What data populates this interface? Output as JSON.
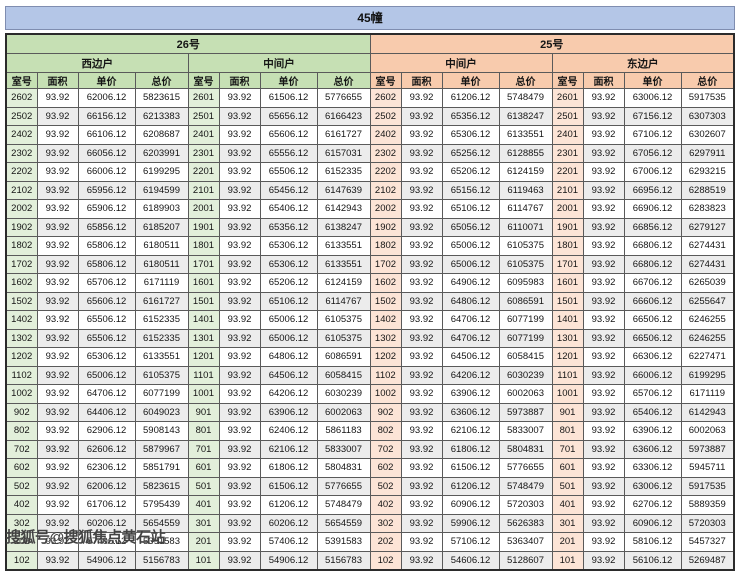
{
  "title": "45幢",
  "watermark": "搜狐号@搜狐焦点黄石站",
  "colors": {
    "title_bar": "#b4c6e7",
    "building_26_header": "#c6e0b4",
    "building_26_room_tint": "#e2efda",
    "building_25_header": "#f8cbad",
    "building_25_room_tint": "#fce4d6",
    "row_stripe": "#ececec",
    "border": "#5a5a5a"
  },
  "table": {
    "column_headers": [
      "室号",
      "面积",
      "单价",
      "总价"
    ],
    "sections": [
      {
        "building": "26号",
        "theme": "green",
        "units": [
          {
            "name": "西边户",
            "rows": [
              [
                "2602",
                "93.92",
                "62006.12",
                "5823615"
              ],
              [
                "2502",
                "93.92",
                "66156.12",
                "6213383"
              ],
              [
                "2402",
                "93.92",
                "66106.12",
                "6208687"
              ],
              [
                "2302",
                "93.92",
                "66056.12",
                "6203991"
              ],
              [
                "2202",
                "93.92",
                "66006.12",
                "6199295"
              ],
              [
                "2102",
                "93.92",
                "65956.12",
                "6194599"
              ],
              [
                "2002",
                "93.92",
                "65906.12",
                "6189903"
              ],
              [
                "1902",
                "93.92",
                "65856.12",
                "6185207"
              ],
              [
                "1802",
                "93.92",
                "65806.12",
                "6180511"
              ],
              [
                "1702",
                "93.92",
                "65806.12",
                "6180511"
              ],
              [
                "1602",
                "93.92",
                "65706.12",
                "6171119"
              ],
              [
                "1502",
                "93.92",
                "65606.12",
                "6161727"
              ],
              [
                "1402",
                "93.92",
                "65506.12",
                "6152335"
              ],
              [
                "1302",
                "93.92",
                "65506.12",
                "6152335"
              ],
              [
                "1202",
                "93.92",
                "65306.12",
                "6133551"
              ],
              [
                "1102",
                "93.92",
                "65006.12",
                "6105375"
              ],
              [
                "1002",
                "93.92",
                "64706.12",
                "6077199"
              ],
              [
                "902",
                "93.92",
                "64406.12",
                "6049023"
              ],
              [
                "802",
                "93.92",
                "62906.12",
                "5908143"
              ],
              [
                "702",
                "93.92",
                "62606.12",
                "5879967"
              ],
              [
                "602",
                "93.92",
                "62306.12",
                "5851791"
              ],
              [
                "502",
                "93.92",
                "62006.12",
                "5823615"
              ],
              [
                "402",
                "93.92",
                "61706.12",
                "5795439"
              ],
              [
                "302",
                "93.92",
                "60206.12",
                "5654559"
              ],
              [
                "202",
                "93.92",
                "57406.12",
                "5391583"
              ],
              [
                "102",
                "93.92",
                "54906.12",
                "5156783"
              ]
            ]
          },
          {
            "name": "中间户",
            "rows": [
              [
                "2601",
                "93.92",
                "61506.12",
                "5776655"
              ],
              [
                "2501",
                "93.92",
                "65656.12",
                "6166423"
              ],
              [
                "2401",
                "93.92",
                "65606.12",
                "6161727"
              ],
              [
                "2301",
                "93.92",
                "65556.12",
                "6157031"
              ],
              [
                "2201",
                "93.92",
                "65506.12",
                "6152335"
              ],
              [
                "2101",
                "93.92",
                "65456.12",
                "6147639"
              ],
              [
                "2001",
                "93.92",
                "65406.12",
                "6142943"
              ],
              [
                "1901",
                "93.92",
                "65356.12",
                "6138247"
              ],
              [
                "1801",
                "93.92",
                "65306.12",
                "6133551"
              ],
              [
                "1701",
                "93.92",
                "65306.12",
                "6133551"
              ],
              [
                "1601",
                "93.92",
                "65206.12",
                "6124159"
              ],
              [
                "1501",
                "93.92",
                "65106.12",
                "6114767"
              ],
              [
                "1401",
                "93.92",
                "65006.12",
                "6105375"
              ],
              [
                "1301",
                "93.92",
                "65006.12",
                "6105375"
              ],
              [
                "1201",
                "93.92",
                "64806.12",
                "6086591"
              ],
              [
                "1101",
                "93.92",
                "64506.12",
                "6058415"
              ],
              [
                "1001",
                "93.92",
                "64206.12",
                "6030239"
              ],
              [
                "901",
                "93.92",
                "63906.12",
                "6002063"
              ],
              [
                "801",
                "93.92",
                "62406.12",
                "5861183"
              ],
              [
                "701",
                "93.92",
                "62106.12",
                "5833007"
              ],
              [
                "601",
                "93.92",
                "61806.12",
                "5804831"
              ],
              [
                "501",
                "93.92",
                "61506.12",
                "5776655"
              ],
              [
                "401",
                "93.92",
                "61206.12",
                "5748479"
              ],
              [
                "301",
                "93.92",
                "60206.12",
                "5654559"
              ],
              [
                "201",
                "93.92",
                "57406.12",
                "5391583"
              ],
              [
                "101",
                "93.92",
                "54906.12",
                "5156783"
              ]
            ]
          }
        ]
      },
      {
        "building": "25号",
        "theme": "peach",
        "units": [
          {
            "name": "中间户",
            "rows": [
              [
                "2602",
                "93.92",
                "61206.12",
                "5748479"
              ],
              [
                "2502",
                "93.92",
                "65356.12",
                "6138247"
              ],
              [
                "2402",
                "93.92",
                "65306.12",
                "6133551"
              ],
              [
                "2302",
                "93.92",
                "65256.12",
                "6128855"
              ],
              [
                "2202",
                "93.92",
                "65206.12",
                "6124159"
              ],
              [
                "2102",
                "93.92",
                "65156.12",
                "6119463"
              ],
              [
                "2002",
                "93.92",
                "65106.12",
                "6114767"
              ],
              [
                "1902",
                "93.92",
                "65056.12",
                "6110071"
              ],
              [
                "1802",
                "93.92",
                "65006.12",
                "6105375"
              ],
              [
                "1702",
                "93.92",
                "65006.12",
                "6105375"
              ],
              [
                "1602",
                "93.92",
                "64906.12",
                "6095983"
              ],
              [
                "1502",
                "93.92",
                "64806.12",
                "6086591"
              ],
              [
                "1402",
                "93.92",
                "64706.12",
                "6077199"
              ],
              [
                "1302",
                "93.92",
                "64706.12",
                "6077199"
              ],
              [
                "1202",
                "93.92",
                "64506.12",
                "6058415"
              ],
              [
                "1102",
                "93.92",
                "64206.12",
                "6030239"
              ],
              [
                "1002",
                "93.92",
                "63906.12",
                "6002063"
              ],
              [
                "902",
                "93.92",
                "63606.12",
                "5973887"
              ],
              [
                "802",
                "93.92",
                "62106.12",
                "5833007"
              ],
              [
                "702",
                "93.92",
                "61806.12",
                "5804831"
              ],
              [
                "602",
                "93.92",
                "61506.12",
                "5776655"
              ],
              [
                "502",
                "93.92",
                "61206.12",
                "5748479"
              ],
              [
                "402",
                "93.92",
                "60906.12",
                "5720303"
              ],
              [
                "302",
                "93.92",
                "59906.12",
                "5626383"
              ],
              [
                "202",
                "93.92",
                "57106.12",
                "5363407"
              ],
              [
                "102",
                "93.92",
                "54606.12",
                "5128607"
              ]
            ]
          },
          {
            "name": "东边户",
            "rows": [
              [
                "2601",
                "93.92",
                "63006.12",
                "5917535"
              ],
              [
                "2501",
                "93.92",
                "67156.12",
                "6307303"
              ],
              [
                "2401",
                "93.92",
                "67106.12",
                "6302607"
              ],
              [
                "2301",
                "93.92",
                "67056.12",
                "6297911"
              ],
              [
                "2201",
                "93.92",
                "67006.12",
                "6293215"
              ],
              [
                "2101",
                "93.92",
                "66956.12",
                "6288519"
              ],
              [
                "2001",
                "93.92",
                "66906.12",
                "6283823"
              ],
              [
                "1901",
                "93.92",
                "66856.12",
                "6279127"
              ],
              [
                "1801",
                "93.92",
                "66806.12",
                "6274431"
              ],
              [
                "1701",
                "93.92",
                "66806.12",
                "6274431"
              ],
              [
                "1601",
                "93.92",
                "66706.12",
                "6265039"
              ],
              [
                "1501",
                "93.92",
                "66606.12",
                "6255647"
              ],
              [
                "1401",
                "93.92",
                "66506.12",
                "6246255"
              ],
              [
                "1301",
                "93.92",
                "66506.12",
                "6246255"
              ],
              [
                "1201",
                "93.92",
                "66306.12",
                "6227471"
              ],
              [
                "1101",
                "93.92",
                "66006.12",
                "6199295"
              ],
              [
                "1001",
                "93.92",
                "65706.12",
                "6171119"
              ],
              [
                "901",
                "93.92",
                "65406.12",
                "6142943"
              ],
              [
                "801",
                "93.92",
                "63906.12",
                "6002063"
              ],
              [
                "701",
                "93.92",
                "63606.12",
                "5973887"
              ],
              [
                "601",
                "93.92",
                "63306.12",
                "5945711"
              ],
              [
                "501",
                "93.92",
                "63006.12",
                "5917535"
              ],
              [
                "401",
                "93.92",
                "62706.12",
                "5889359"
              ],
              [
                "301",
                "93.92",
                "60906.12",
                "5720303"
              ],
              [
                "201",
                "93.92",
                "58106.12",
                "5457327"
              ],
              [
                "101",
                "93.92",
                "56106.12",
                "5269487"
              ]
            ]
          }
        ]
      }
    ]
  }
}
